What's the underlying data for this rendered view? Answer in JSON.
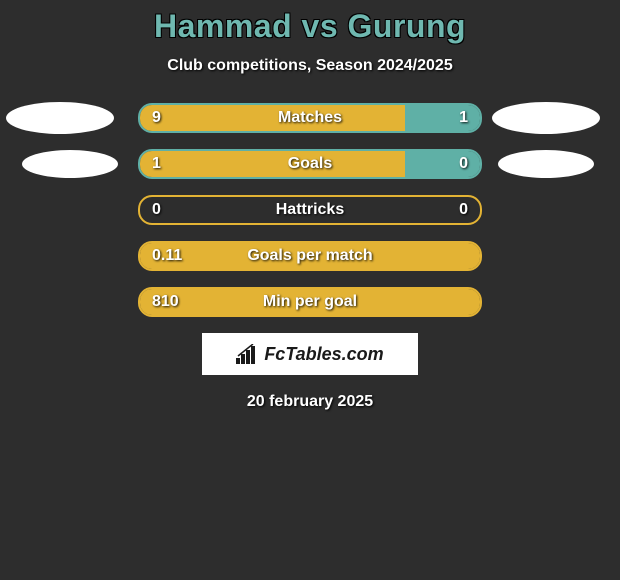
{
  "title": "Hammad vs Gurung",
  "subtitle": "Club competitions, Season 2024/2025",
  "date": "20 february 2025",
  "logo_text": "FcTables.com",
  "colors": {
    "background": "#2d2d2d",
    "title": "#6fb8b0",
    "ellipse": "#ffffff",
    "bar_left_fill": "#e3b334",
    "bar_right_fill": "#5fb0a6",
    "bar_border_teal": "#5fb0a6",
    "bar_border_gold": "#e3b334",
    "text": "#ffffff"
  },
  "rows": [
    {
      "label": "Matches",
      "left_val": "9",
      "right_val": "1",
      "has_ellipses": true,
      "ellipse_size": "large",
      "left_fill_pct": 78,
      "right_fill_pct": 22,
      "left_fill_color": "#e3b334",
      "right_fill_color": "#5fb0a6",
      "border_color": "#5fb0a6"
    },
    {
      "label": "Goals",
      "left_val": "1",
      "right_val": "0",
      "has_ellipses": true,
      "ellipse_size": "small",
      "left_fill_pct": 78,
      "right_fill_pct": 22,
      "left_fill_color": "#e3b334",
      "right_fill_color": "#5fb0a6",
      "border_color": "#5fb0a6"
    },
    {
      "label": "Hattricks",
      "left_val": "0",
      "right_val": "0",
      "has_ellipses": false,
      "left_fill_pct": 0,
      "right_fill_pct": 0,
      "left_fill_color": "#e3b334",
      "right_fill_color": "#5fb0a6",
      "border_color": "#e3b334"
    },
    {
      "label": "Goals per match",
      "left_val": "0.11",
      "right_val": "",
      "has_ellipses": false,
      "left_fill_pct": 100,
      "right_fill_pct": 0,
      "left_fill_color": "#e3b334",
      "right_fill_color": "#5fb0a6",
      "border_color": "#e3b334"
    },
    {
      "label": "Min per goal",
      "left_val": "810",
      "right_val": "",
      "has_ellipses": false,
      "left_fill_pct": 100,
      "right_fill_pct": 0,
      "left_fill_color": "#e3b334",
      "right_fill_color": "#5fb0a6",
      "border_color": "#e3b334"
    }
  ]
}
